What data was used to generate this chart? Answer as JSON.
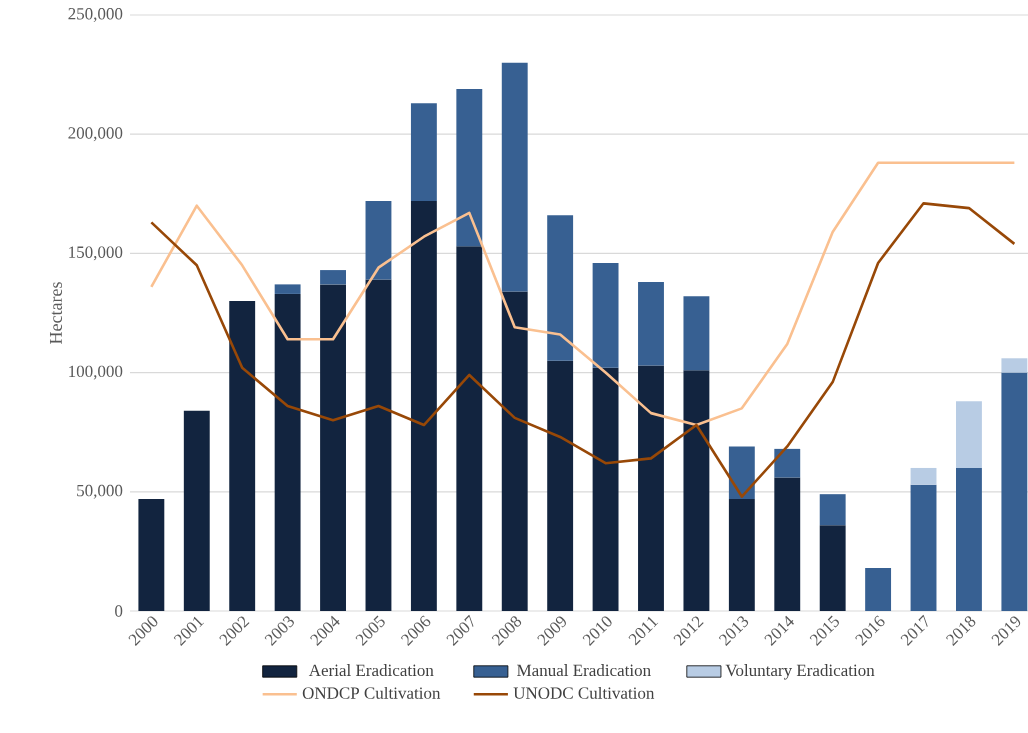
{
  "chart_data": {
    "type": "bar",
    "stacked": true,
    "ylabel": "Hectares",
    "categories": [
      "2000",
      "2001",
      "2002",
      "2003",
      "2004",
      "2005",
      "2006",
      "2007",
      "2008",
      "2009",
      "2010",
      "2011",
      "2012",
      "2013",
      "2014",
      "2015",
      "2016",
      "2017",
      "2018",
      "2019"
    ],
    "series": [
      {
        "name": "Aerial Eradication",
        "color": "#12243f",
        "values": [
          47000,
          84000,
          130000,
          133000,
          137000,
          139000,
          172000,
          153000,
          134000,
          105000,
          102000,
          103000,
          101000,
          47000,
          56000,
          36000,
          null,
          null,
          null,
          null
        ]
      },
      {
        "name": "Manual Eradication",
        "color": "#376092",
        "values": [
          null,
          null,
          null,
          4000,
          6000,
          33000,
          41000,
          66000,
          96000,
          61000,
          44000,
          35000,
          31000,
          22000,
          12000,
          13000,
          18000,
          53000,
          60000,
          100000
        ]
      },
      {
        "name": "Voluntary Eradication",
        "color": "#b8cce4",
        "values": [
          null,
          null,
          null,
          null,
          null,
          null,
          null,
          null,
          null,
          null,
          null,
          null,
          null,
          null,
          null,
          null,
          null,
          7000,
          28000,
          6000
        ]
      },
      {
        "name": "ONDCP Cultivation",
        "type": "line",
        "color": "#fac090",
        "values": [
          136000,
          170000,
          145000,
          114000,
          114000,
          144000,
          157000,
          167000,
          119000,
          116000,
          100000,
          83000,
          78000,
          85000,
          112000,
          159000,
          188000,
          188000,
          188000,
          188000
        ]
      },
      {
        "name": "UNODC Cultivation",
        "type": "line",
        "color": "#984807",
        "values": [
          163000,
          145000,
          102000,
          86000,
          80000,
          86000,
          78000,
          99000,
          81000,
          73000,
          62000,
          64000,
          78000,
          48000,
          69000,
          96000,
          146000,
          171000,
          169000,
          154000
        ]
      }
    ],
    "ylim": [
      0,
      250000
    ],
    "yticks": [
      0,
      {
        "value": 50000,
        "label": "50,000"
      },
      {
        "value": 100000,
        "label": "100,000"
      },
      {
        "value": 150000,
        "label": "150,000"
      },
      {
        "value": 200000,
        "label": "200,000"
      },
      {
        "value": 250000,
        "label": "250,000"
      }
    ],
    "grid": "y",
    "legend": "bottom"
  }
}
